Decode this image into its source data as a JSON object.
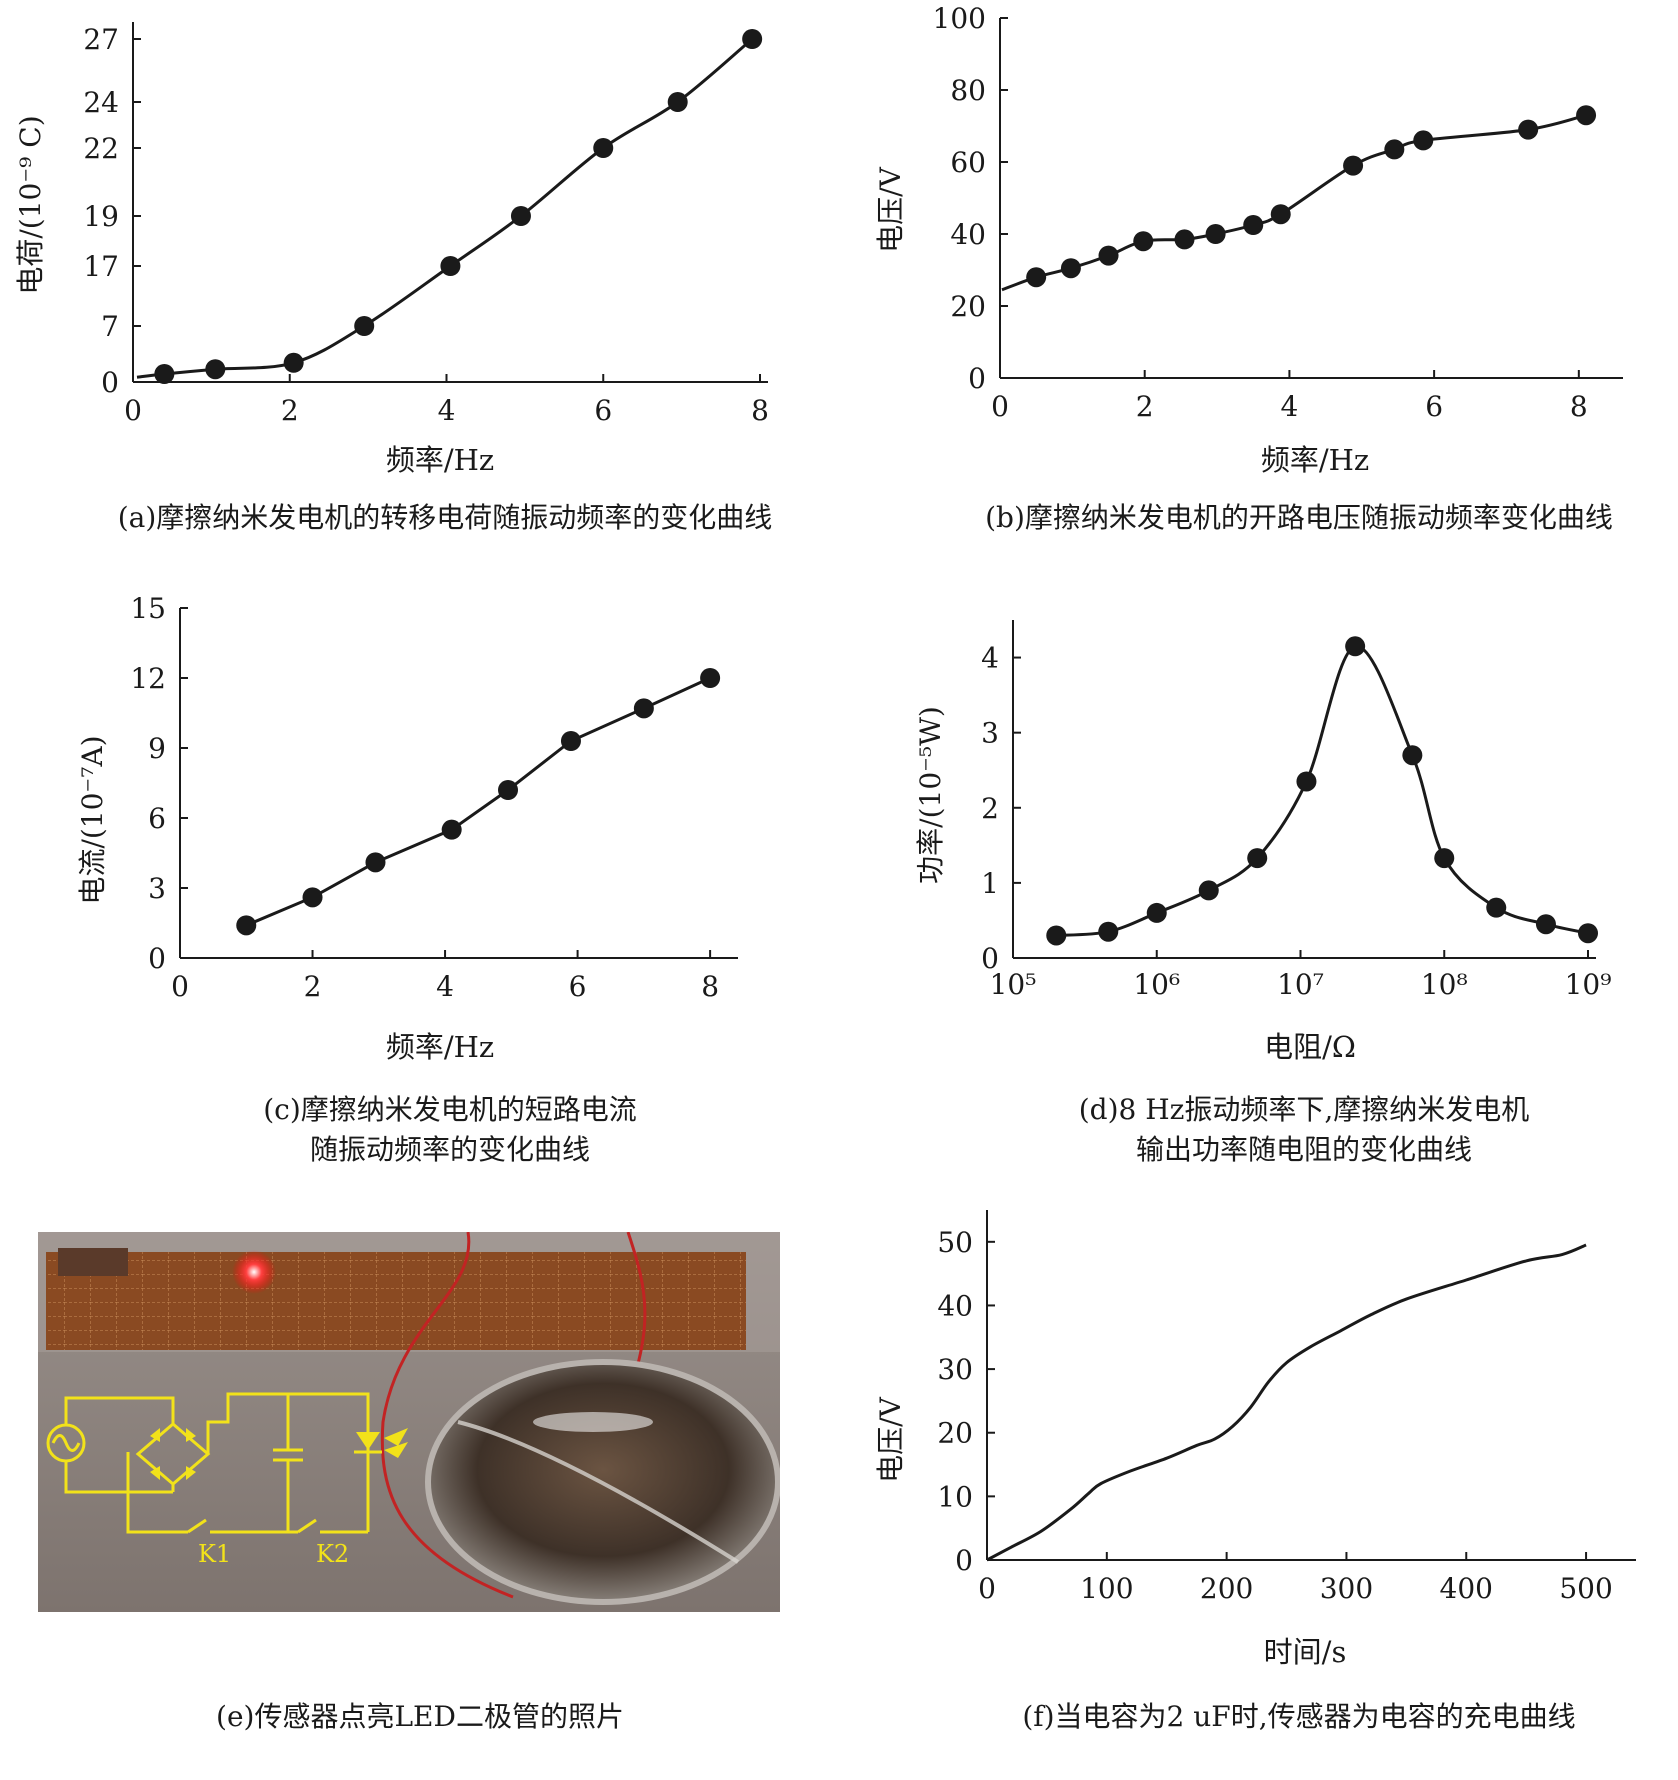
{
  "captions": {
    "a": "(a)摩擦纳米发电机的转移电荷随振动频率的变化曲线",
    "b": "(b)摩擦纳米发电机的开路电压随振动频率变化曲线",
    "c_line1": "(c)摩擦纳米发电机的短路电流",
    "c_line2": "随振动频率的变化曲线",
    "d_line1": "(d)8 Hz振动频率下,摩擦纳米发电机",
    "d_line2": "输出功率随电阻的变化曲线",
    "e": "(e)传感器点亮LED二极管的照片",
    "f": "(f)当电容为2 uF时,传感器为电容的充电曲线"
  },
  "photo": {
    "switch1_label": "K1",
    "switch2_label": "K2",
    "colors": {
      "circuit": "#f2e21a",
      "led": "#ff2a2a",
      "board": "#8a4a22",
      "background": "#8d837e"
    }
  },
  "chart_data": [
    {
      "id": "a",
      "type": "line",
      "markers": true,
      "xlabel": "频率/Hz",
      "ylabel": "电荷/(10⁻⁹ C)",
      "xticks": [
        0,
        2,
        4,
        6,
        8
      ],
      "xlim": [
        0,
        8
      ],
      "ytick_labels": [
        "0",
        "7",
        "17",
        "19",
        "22",
        "24",
        "27"
      ],
      "series": [
        {
          "x": [
            0.4,
            1.05,
            2.05,
            2.95,
            4.05,
            4.95,
            6.0,
            6.95,
            7.9
          ],
          "y": [
            1,
            1.6,
            2.4,
            7,
            17,
            19,
            22,
            24,
            27
          ]
        }
      ],
      "line_color": "#1a1a1a"
    },
    {
      "id": "b",
      "type": "line",
      "markers": true,
      "xlabel": "频率/Hz",
      "ylabel": "电压/V",
      "xticks": [
        0,
        2,
        4,
        6,
        8
      ],
      "xlim": [
        0,
        8.5
      ],
      "yticks": [
        0,
        20,
        40,
        60,
        80,
        100
      ],
      "ylim": [
        0,
        100
      ],
      "series": [
        {
          "x": [
            0.5,
            0.98,
            1.5,
            1.98,
            2.55,
            2.98,
            3.5,
            3.88,
            4.88,
            5.45,
            5.85,
            7.3,
            8.1
          ],
          "y": [
            28,
            30.5,
            34,
            38,
            38.5,
            40,
            42.5,
            45.5,
            59,
            63.5,
            66,
            69,
            73
          ]
        }
      ],
      "line_color": "#1a1a1a"
    },
    {
      "id": "c",
      "type": "line",
      "markers": true,
      "xlabel": "频率/Hz",
      "ylabel": "电流/(10⁻⁷A)",
      "xticks": [
        0,
        2,
        4,
        6,
        8
      ],
      "xlim": [
        0,
        8.3
      ],
      "yticks": [
        0,
        3,
        6,
        9,
        12,
        15
      ],
      "ylim": [
        0,
        15
      ],
      "series": [
        {
          "x": [
            1.0,
            2.0,
            2.95,
            4.1,
            4.95,
            5.9,
            7.0,
            8.0
          ],
          "y": [
            1.4,
            2.6,
            4.1,
            5.5,
            7.2,
            9.3,
            10.7,
            12.0
          ]
        }
      ],
      "line_color": "#1a1a1a"
    },
    {
      "id": "d",
      "type": "line",
      "markers": true,
      "xscale": "log",
      "xlabel": "电阻/Ω",
      "ylabel": "功率/(10⁻⁵W)",
      "xtick_labels": [
        "10⁵",
        "10⁶",
        "10⁷",
        "10⁸",
        "10⁹"
      ],
      "xlim": [
        100000,
        1000000000
      ],
      "yticks": [
        0,
        1,
        2,
        3,
        4
      ],
      "ylim": [
        0,
        4.5
      ],
      "series": [
        {
          "x": [
            200000,
            460000,
            1000000,
            2300000,
            5000000,
            11000000,
            24000000,
            60000000,
            100000000,
            230000000,
            510000000,
            1000000000
          ],
          "y": [
            0.3,
            0.35,
            0.6,
            0.9,
            1.33,
            2.35,
            4.15,
            2.7,
            1.33,
            0.67,
            0.45,
            0.33
          ]
        }
      ],
      "line_color": "#1a1a1a"
    },
    {
      "id": "f",
      "type": "line",
      "markers": false,
      "xlabel": "时间/s",
      "ylabel": "电压/V",
      "xticks": [
        0,
        100,
        200,
        300,
        400,
        500
      ],
      "xlim": [
        0,
        535
      ],
      "yticks": [
        0,
        10,
        20,
        30,
        40,
        50
      ],
      "ylim": [
        0,
        55
      ],
      "series": [
        {
          "x": [
            0,
            20,
            45,
            70,
            85,
            95,
            120,
            150,
            175,
            190,
            205,
            220,
            235,
            250,
            270,
            295,
            320,
            350,
            400,
            450,
            480,
            500
          ],
          "y": [
            0,
            2,
            4.5,
            8,
            10.5,
            12,
            14,
            16,
            18,
            19,
            21,
            24,
            28,
            31,
            33.5,
            36,
            38.5,
            41,
            44,
            47,
            48,
            49.5
          ]
        }
      ],
      "line_color": "#1a1a1a"
    }
  ]
}
